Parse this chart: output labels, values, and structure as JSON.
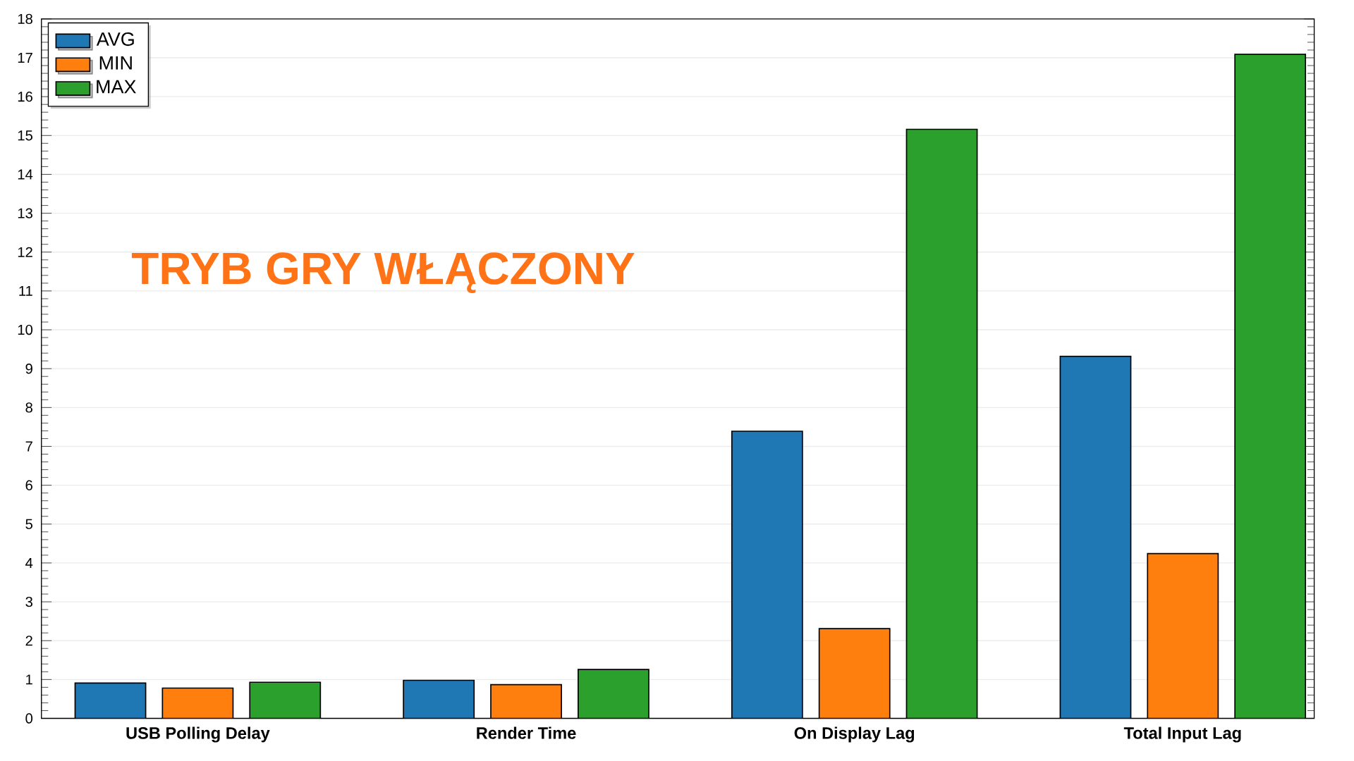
{
  "chart_data": {
    "type": "bar",
    "categories": [
      "USB Polling Delay",
      "Render Time",
      "On Display Lag",
      "Total Input Lag"
    ],
    "series": [
      {
        "name": "AVG",
        "color": "#1f77b4",
        "values": [
          0.91,
          0.98,
          7.39,
          9.32
        ]
      },
      {
        "name": "MIN",
        "color": "#ff7f0e",
        "values": [
          0.78,
          0.87,
          2.31,
          4.24
        ]
      },
      {
        "name": "MAX",
        "color": "#2ca02c",
        "values": [
          0.93,
          1.26,
          15.16,
          17.09
        ]
      }
    ],
    "ylim": [
      0,
      18
    ],
    "yticks": [
      0,
      1,
      2,
      3,
      4,
      5,
      6,
      7,
      8,
      9,
      10,
      11,
      12,
      13,
      14,
      15,
      16,
      17,
      18
    ],
    "grid": "y",
    "legend": "top left",
    "annotations": [
      "TRYB GRY WŁĄCZONY"
    ]
  }
}
